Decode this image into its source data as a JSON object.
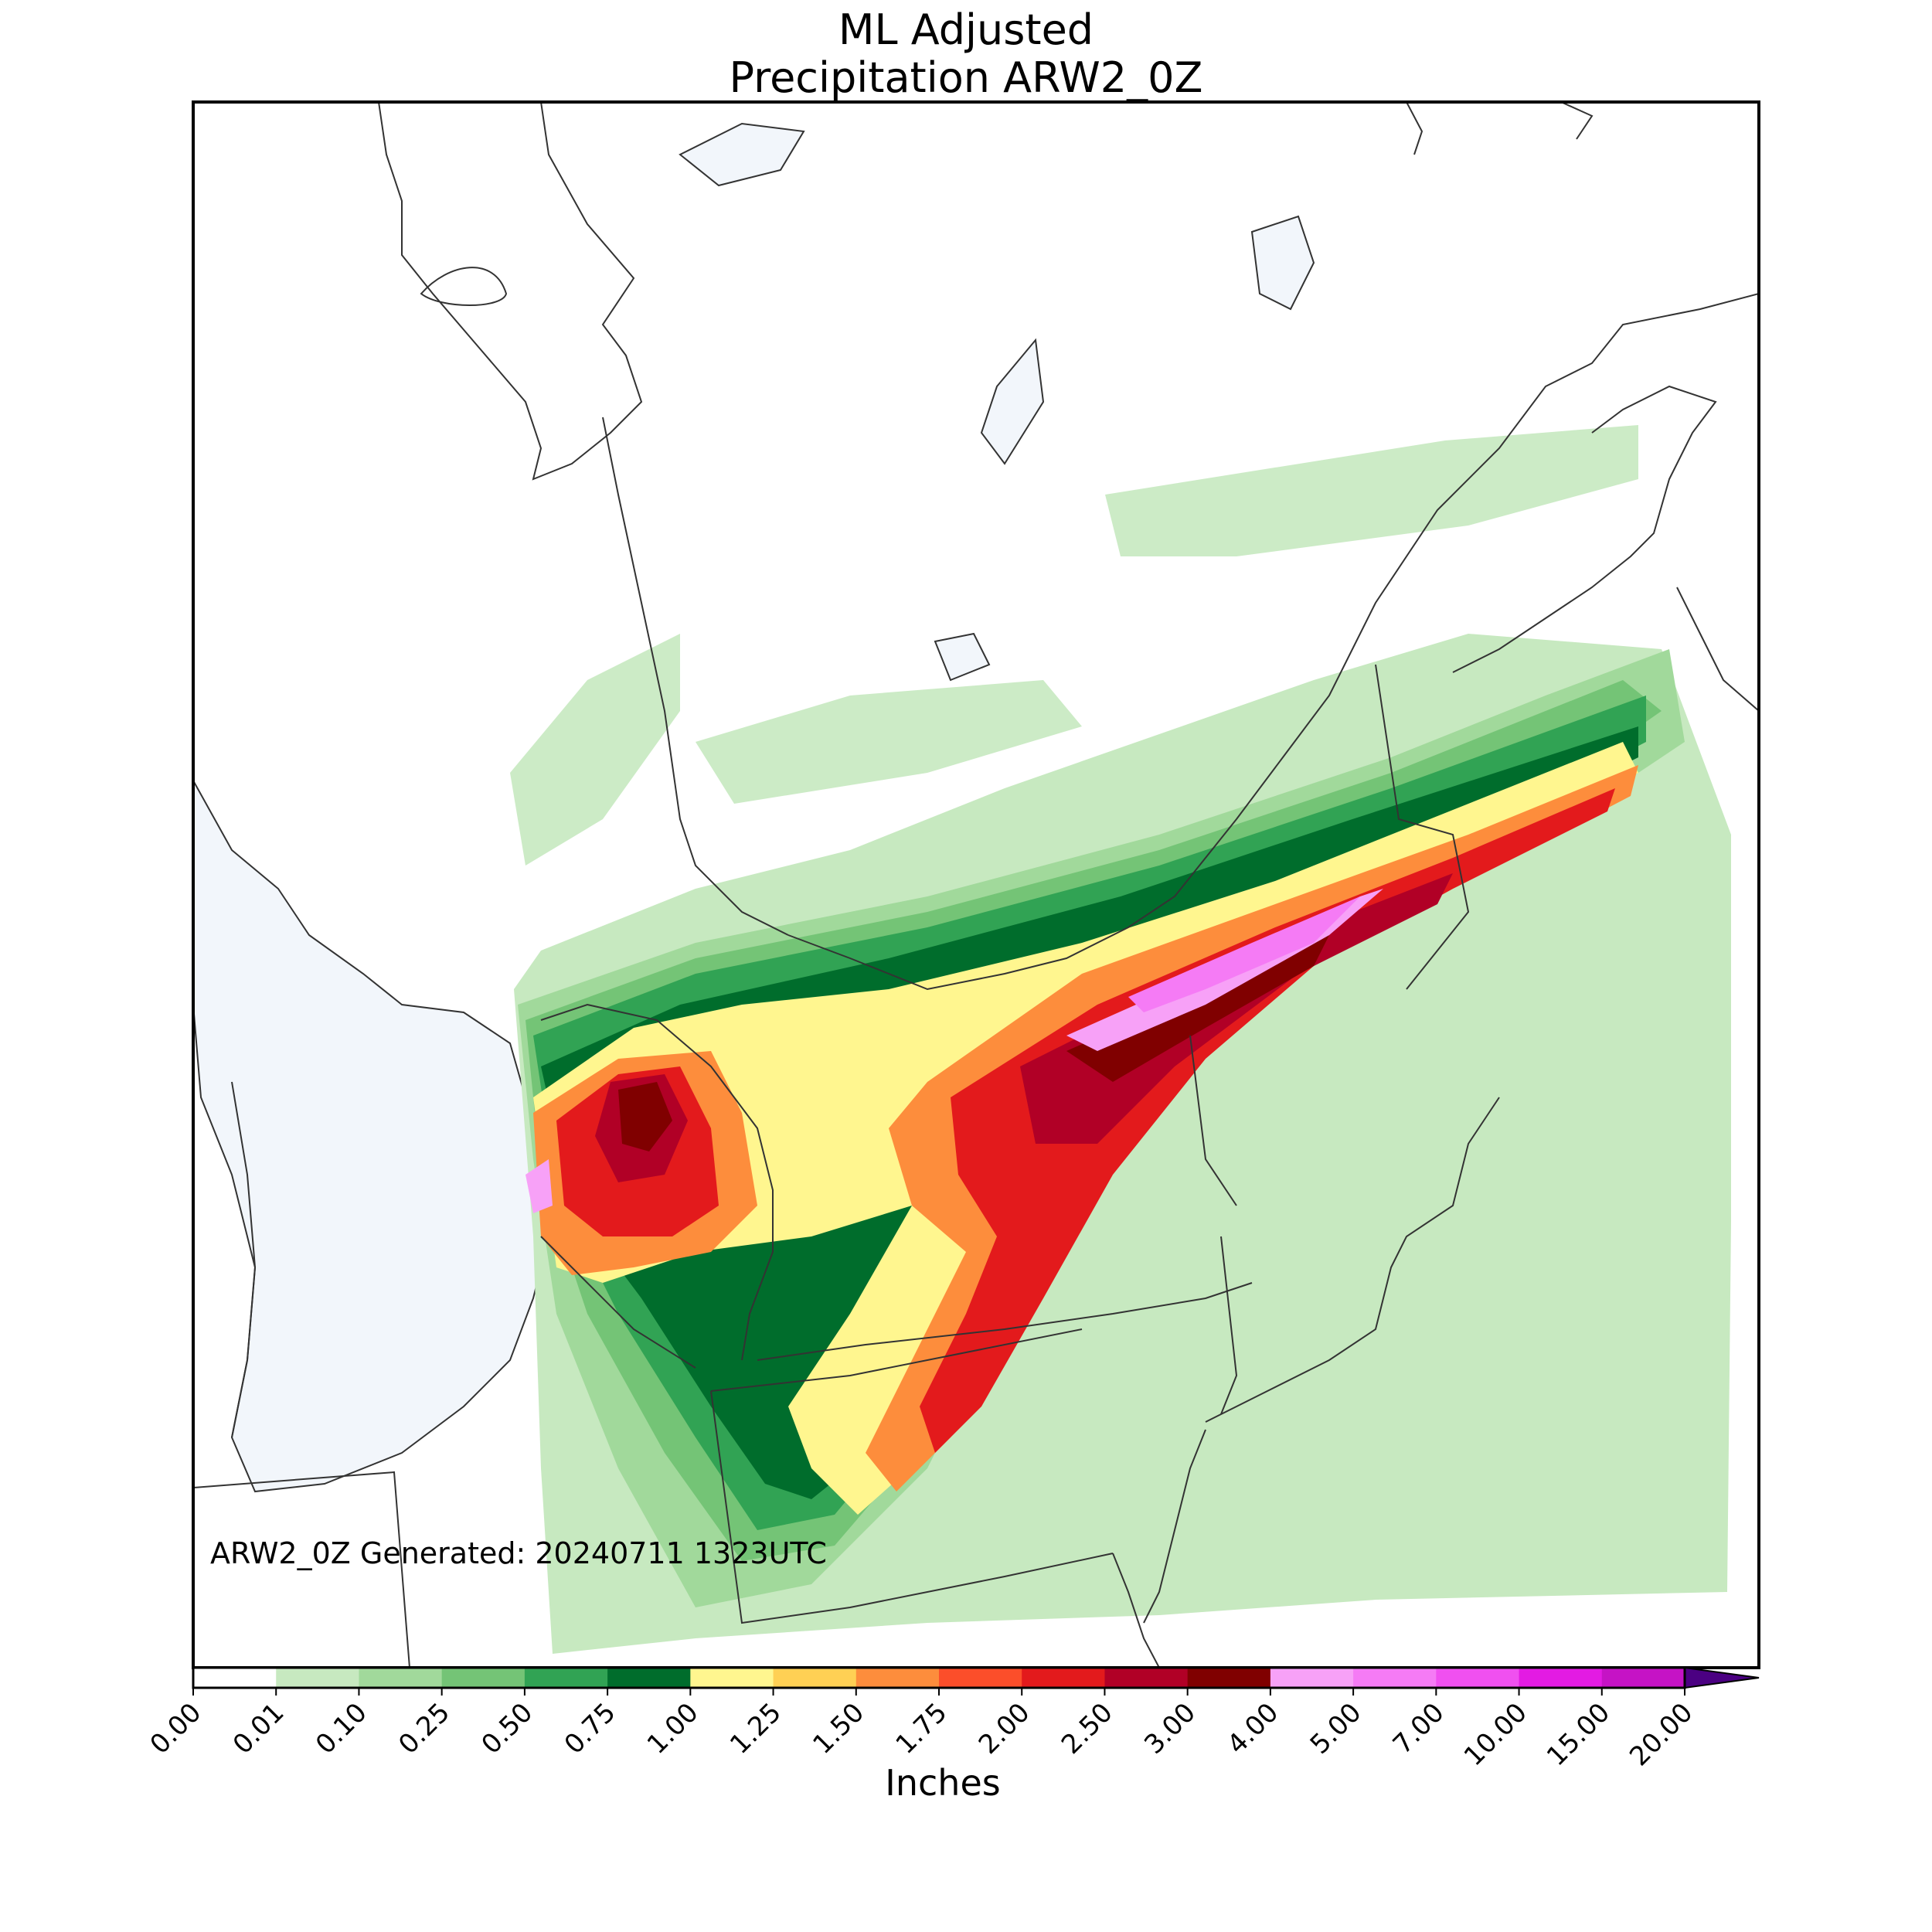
{
  "title": {
    "line1": "ML Adjusted",
    "line2": "Precipitation ARW2_0Z"
  },
  "stamp": "ARW2_0Z Generated: 20240711 1323UTC",
  "colorbar": {
    "label": "Inches",
    "ticks": [
      "0.00",
      "0.01",
      "0.10",
      "0.25",
      "0.50",
      "0.75",
      "1.00",
      "1.25",
      "1.50",
      "1.75",
      "2.00",
      "2.50",
      "3.00",
      "4.00",
      "5.00",
      "7.00",
      "10.00",
      "15.00",
      "20.00"
    ],
    "colors": [
      "#ffffff",
      "#c7e9c0",
      "#a1d99b",
      "#74c476",
      "#31a354",
      "#006d2c",
      "#fff68f",
      "#ffd054",
      "#fd8d3c",
      "#fc4e2a",
      "#e31a1c",
      "#b10026",
      "#800000",
      "#f7a1f7",
      "#f57bf5",
      "#f050f0",
      "#e31be3",
      "#c513c5",
      "#8b00c8"
    ],
    "extend_color": "#4b0082"
  },
  "map": {
    "water_color": "#f2f6fb",
    "line_color": "#333333",
    "bands": [
      {
        "level": 1,
        "color": "#c7e9c0"
      },
      {
        "level": 2,
        "color": "#a1d99b"
      },
      {
        "level": 3,
        "color": "#74c476"
      },
      {
        "level": 4,
        "color": "#31a354"
      },
      {
        "level": 5,
        "color": "#006d2c"
      },
      {
        "level": 6,
        "color": "#fff68f"
      },
      {
        "level": 8,
        "color": "#fd8d3c"
      },
      {
        "level": 10,
        "color": "#e31a1c"
      },
      {
        "level": 11,
        "color": "#b10026"
      },
      {
        "level": 12,
        "color": "#800000"
      },
      {
        "level": 13,
        "color": "#f7a1f7"
      },
      {
        "level": 14,
        "color": "#f57bf5"
      }
    ]
  }
}
